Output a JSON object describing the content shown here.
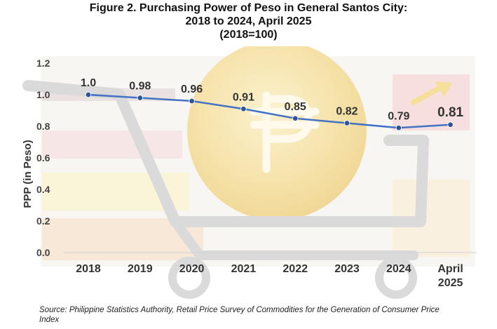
{
  "title": {
    "line1": "Figure 2. Purchasing Power of Peso in General Santos City:",
    "line2": "2018 to 2024, April 2025",
    "line3": "(2018=100)"
  },
  "source": "Source: Philippine Statistics Authority, Retail Price Survey of Commodities for the Generation of Consumer Price Index",
  "chart_data": {
    "type": "line",
    "categories": [
      "2018",
      "2019",
      "2020",
      "2021",
      "2022",
      "2023",
      "2024",
      "April 2025"
    ],
    "values": [
      1.0,
      0.98,
      0.96,
      0.91,
      0.85,
      0.82,
      0.79,
      0.81
    ],
    "data_labels": [
      "1.0",
      "0.98",
      "0.96",
      "0.91",
      "0.85",
      "0.82",
      "0.79",
      "0.81"
    ],
    "ylabel": "PPP  (in Peso)",
    "xlabel": "",
    "ylim": [
      0,
      1.2
    ],
    "yticks": [
      "0.0",
      "0.2",
      "0.4",
      "0.6",
      "0.8",
      "1.0",
      "1.2"
    ],
    "grid": false,
    "line_color": "#4472C4",
    "marker_color": "#2F5597"
  }
}
